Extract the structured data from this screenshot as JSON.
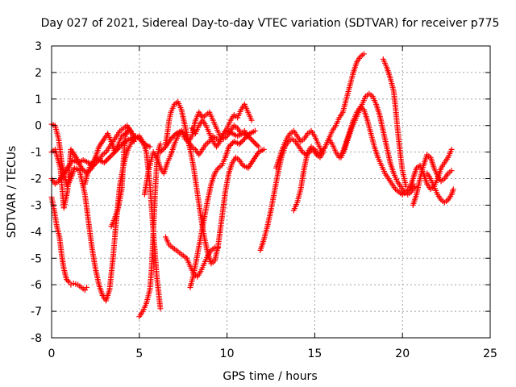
{
  "chart_data": {
    "type": "scatter",
    "title": "Day 027 of 2021, Sidereal Day-to-day VTEC variation (SDTVAR) for receiver p775",
    "xlabel": "GPS time / hours",
    "ylabel": "SDTVAR / TECUs",
    "xlim": [
      0,
      25
    ],
    "ylim": [
      -8,
      3
    ],
    "xticks": [
      0,
      5,
      10,
      15,
      20,
      25
    ],
    "yticks": [
      -8,
      -7,
      -6,
      -5,
      -4,
      -3,
      -2,
      -1,
      0,
      1,
      2,
      3
    ],
    "grid": true,
    "marker": "plus",
    "color": "#ff0000",
    "series": [
      {
        "name": "track-1",
        "x": [
          0.0,
          0.2,
          0.4,
          0.7,
          1.0,
          1.2,
          1.5,
          1.8,
          2.1,
          2.4,
          2.7,
          3.0,
          3.3,
          3.6,
          3.9,
          4.2,
          4.5,
          4.8,
          5.0,
          5.3,
          5.6
        ],
        "y": [
          -2.0,
          -2.2,
          -2.1,
          -1.8,
          -1.5,
          -1.3,
          -1.4,
          -1.3,
          -1.4,
          -1.5,
          -1.3,
          -1.4,
          -1.2,
          -1.0,
          -0.8,
          -0.6,
          -0.5,
          -0.4,
          -0.5,
          -0.7,
          -0.8
        ]
      },
      {
        "name": "track-2",
        "x": [
          0.0,
          0.2,
          0.4,
          0.6,
          0.9,
          1.1,
          1.3,
          1.6,
          1.9,
          2.1,
          2.3,
          2.5,
          2.7,
          2.9,
          3.1,
          3.3,
          3.5,
          3.7,
          3.9,
          4.1,
          4.3,
          4.5,
          4.7,
          5.0,
          5.2,
          5.4,
          5.6,
          5.8,
          6.0,
          6.2
        ],
        "y": [
          0.05,
          0.0,
          -0.5,
          -1.5,
          -2.3,
          -2.0,
          -1.6,
          -1.7,
          -2.6,
          -3.6,
          -4.6,
          -5.4,
          -6.0,
          -6.4,
          -6.6,
          -6.2,
          -5.0,
          -3.5,
          -2.2,
          -1.5,
          -1.0,
          -0.7,
          -0.5,
          -0.4,
          -0.6,
          -1.0,
          -2.2,
          -4.0,
          -5.7,
          -6.9
        ]
      },
      {
        "name": "track-3",
        "x": [
          0.0,
          0.15,
          0.3,
          0.45,
          0.6,
          0.7,
          0.85,
          1.0,
          1.1,
          1.25,
          1.5,
          1.7,
          1.9,
          2.0
        ],
        "y": [
          -2.7,
          -3.2,
          -3.8,
          -4.2,
          -5.0,
          -5.4,
          -5.8,
          -5.9,
          -6.0,
          -5.95,
          -6.0,
          -6.1,
          -6.2,
          -6.1
        ]
      },
      {
        "name": "track-4",
        "x": [
          0.0,
          0.2,
          0.5,
          0.7,
          0.9,
          1.1,
          1.4,
          1.7,
          2.0,
          2.3,
          2.5,
          2.7,
          3.0,
          3.2,
          3.4,
          3.6,
          3.8,
          4.0,
          4.2,
          4.4,
          4.6,
          4.8,
          5.0
        ],
        "y": [
          -1.0,
          -0.9,
          -1.6,
          -3.1,
          -2.5,
          -0.9,
          -1.2,
          -1.6,
          -1.8,
          -1.6,
          -1.2,
          -0.8,
          -0.5,
          -0.3,
          -0.6,
          -1.0,
          -0.7,
          -0.4,
          -0.3,
          -0.2,
          -0.3,
          -0.5,
          -0.4
        ]
      },
      {
        "name": "track-5",
        "x": [
          1.9,
          2.05,
          2.2,
          2.35,
          2.5,
          2.7,
          2.9,
          3.1,
          3.3,
          3.5,
          3.7,
          3.9,
          4.1,
          4.3,
          4.5
        ],
        "y": [
          -2.2,
          -1.8,
          -1.5,
          -1.4,
          -1.2,
          -1.3,
          -1.1,
          -1.0,
          -0.8,
          -0.6,
          -0.4,
          -0.2,
          -0.1,
          0.0,
          -0.2
        ]
      },
      {
        "name": "track-6",
        "x": [
          3.4,
          3.6,
          3.8,
          4.0,
          4.1,
          4.2,
          4.4,
          4.6,
          4.7
        ],
        "y": [
          -3.8,
          -3.5,
          -3.1,
          -2.4,
          -1.3,
          -0.4,
          -0.1,
          -0.3,
          -0.6
        ]
      },
      {
        "name": "track-7",
        "x": [
          5.0,
          5.2,
          5.4,
          5.6,
          5.7,
          5.8,
          5.9,
          6.0,
          6.1,
          6.2
        ],
        "y": [
          -7.2,
          -7.0,
          -6.7,
          -6.2,
          -5.4,
          -4.0,
          -2.6,
          -1.4,
          -0.9,
          -0.7
        ]
      },
      {
        "name": "track-8",
        "x": [
          5.3,
          5.4,
          5.5,
          5.6,
          5.8,
          6.0,
          6.2,
          6.4,
          6.6,
          6.8,
          7.0,
          7.2,
          7.4,
          7.6,
          7.8,
          8.0,
          8.2,
          8.4,
          8.6,
          8.8,
          9.0,
          9.2,
          9.4,
          9.6,
          9.8,
          10.0,
          10.3,
          10.6,
          10.9,
          11.2,
          11.5,
          11.8
        ],
        "y": [
          -2.6,
          -2.2,
          -1.8,
          -1.5,
          -1.0,
          -1.2,
          -1.6,
          -1.8,
          -1.4,
          -1.1,
          -0.7,
          -0.4,
          -0.2,
          -0.5,
          -0.6,
          -0.8,
          -0.9,
          -1.1,
          -0.9,
          -0.7,
          -0.6,
          -0.4,
          -0.5,
          -0.6,
          -0.3,
          -0.2,
          -0.3,
          -0.4,
          -0.3,
          -0.4,
          -0.6,
          -0.8
        ]
      },
      {
        "name": "track-9",
        "x": [
          6.5,
          6.6,
          6.7,
          6.8,
          7.0,
          7.2,
          7.4,
          7.6,
          7.8,
          8.0,
          8.2,
          8.4,
          8.6,
          8.8,
          9.0,
          9.2,
          9.4,
          9.6,
          9.8,
          10.0,
          10.2,
          10.4,
          10.6,
          10.8,
          11.0,
          11.2
        ],
        "y": [
          -0.7,
          -0.3,
          0.2,
          0.5,
          0.8,
          0.9,
          0.6,
          0.0,
          -0.6,
          -0.4,
          0.2,
          0.5,
          0.3,
          0.4,
          0.5,
          0.2,
          -0.1,
          -0.4,
          -0.5,
          -0.4,
          -0.2,
          0.0,
          -0.1,
          -0.3,
          -0.2,
          -0.4
        ]
      },
      {
        "name": "track-10",
        "x": [
          6.5,
          6.7,
          6.9,
          7.1,
          7.3,
          7.5,
          7.7,
          7.9,
          8.1,
          8.3,
          8.5,
          8.7,
          8.9,
          9.1,
          9.3,
          9.5
        ],
        "y": [
          -4.2,
          -4.5,
          -4.6,
          -4.7,
          -4.8,
          -4.9,
          -5.0,
          -5.3,
          -5.6,
          -5.7,
          -5.5,
          -5.2,
          -4.9,
          -4.7,
          -4.6,
          -4.6
        ]
      },
      {
        "name": "track-11",
        "x": [
          6.2,
          6.5,
          6.8,
          7.1,
          7.4,
          7.7,
          7.9,
          8.1,
          8.3,
          8.5,
          8.7,
          8.9,
          9.1,
          9.3,
          9.5,
          9.7,
          9.9,
          10.1,
          10.3,
          10.5,
          10.7,
          10.9,
          11.2,
          11.5,
          11.8,
          12.1
        ],
        "y": [
          -1.0,
          -0.8,
          -0.5,
          -0.3,
          -0.2,
          -0.4,
          -0.9,
          -1.6,
          -2.5,
          -3.4,
          -4.2,
          -4.8,
          -5.2,
          -5.1,
          -4.5,
          -3.5,
          -2.5,
          -1.8,
          -1.4,
          -1.2,
          -1.3,
          -1.5,
          -1.6,
          -1.3,
          -1.0,
          -0.9
        ]
      },
      {
        "name": "track-12",
        "x": [
          7.9,
          8.1,
          8.3,
          8.5,
          8.7,
          8.9,
          9.1,
          9.3,
          9.5,
          9.7,
          9.9,
          10.1,
          10.4,
          10.7,
          11.0,
          11.3,
          11.6
        ],
        "y": [
          -6.1,
          -5.6,
          -4.9,
          -4.2,
          -3.5,
          -2.8,
          -2.2,
          -1.8,
          -1.6,
          -1.5,
          -1.2,
          -0.8,
          -0.6,
          -0.7,
          -0.5,
          -0.3,
          -0.2
        ]
      },
      {
        "name": "track-13",
        "x": [
          8.0,
          8.2,
          8.4,
          8.6,
          8.8,
          9.0,
          9.2,
          9.4,
          9.6,
          9.8,
          10.0,
          10.2,
          10.4,
          10.6,
          10.8,
          11.0,
          11.2,
          11.4
        ],
        "y": [
          -0.1,
          -0.3,
          0.0,
          0.2,
          0.0,
          -0.3,
          -0.6,
          -0.8,
          -0.6,
          -0.3,
          -0.1,
          0.2,
          0.4,
          0.3,
          0.6,
          0.8,
          0.5,
          0.2
        ]
      },
      {
        "name": "track-14",
        "x": [
          11.9,
          12.1,
          12.3,
          12.5,
          12.7,
          12.9,
          13.1,
          13.3,
          13.5,
          13.7,
          13.9,
          14.1,
          14.3,
          14.5,
          14.7,
          14.9,
          15.1,
          15.3,
          15.5
        ],
        "y": [
          -4.7,
          -4.3,
          -3.8,
          -3.2,
          -2.5,
          -1.8,
          -1.2,
          -0.8,
          -0.6,
          -0.5,
          -0.6,
          -0.8,
          -1.0,
          -1.1,
          -1.0,
          -0.9,
          -1.1,
          -1.2,
          -1.0
        ]
      },
      {
        "name": "track-15",
        "x": [
          12.8,
          13.0,
          13.2,
          13.4,
          13.6,
          13.8,
          14.0,
          14.2,
          14.4,
          14.6,
          14.8,
          15.0,
          15.2,
          15.4,
          15.6,
          15.8,
          16.0,
          16.2,
          16.4,
          16.6,
          16.8,
          17.0,
          17.2,
          17.4,
          17.6,
          17.8
        ],
        "y": [
          -1.6,
          -1.2,
          -0.8,
          -0.5,
          -0.3,
          -0.2,
          -0.4,
          -0.6,
          -0.5,
          -0.3,
          -0.2,
          -0.4,
          -0.7,
          -1.0,
          -0.8,
          -0.5,
          -0.2,
          0.0,
          0.3,
          0.5,
          1.0,
          1.5,
          2.0,
          2.4,
          2.6,
          2.7
        ]
      },
      {
        "name": "track-16",
        "x": [
          13.8,
          14.0,
          14.2,
          14.4,
          14.6,
          14.8,
          15.0,
          15.2,
          15.4,
          15.6,
          15.8,
          16.0,
          16.2,
          16.4,
          16.6,
          16.8,
          17.0,
          17.2,
          17.4,
          17.6,
          17.8,
          18.0,
          18.2,
          18.4,
          18.6,
          18.8,
          19.0,
          19.2,
          19.4,
          19.6,
          19.8,
          20.0,
          20.2,
          20.4,
          20.6
        ],
        "y": [
          -3.2,
          -2.9,
          -2.4,
          -1.6,
          -1.0,
          -0.8,
          -0.9,
          -1.1,
          -1.0,
          -0.8,
          -0.5,
          -0.7,
          -1.0,
          -1.2,
          -1.0,
          -0.6,
          -0.2,
          0.2,
          0.5,
          0.7,
          0.6,
          0.2,
          -0.3,
          -0.8,
          -1.2,
          -1.5,
          -1.8,
          -2.0,
          -2.2,
          -2.4,
          -2.5,
          -2.6,
          -2.5,
          -2.4,
          -2.2
        ]
      },
      {
        "name": "track-17",
        "x": [
          16.5,
          16.7,
          16.9,
          17.1,
          17.3,
          17.5,
          17.7,
          17.9,
          18.1,
          18.3,
          18.5,
          18.7,
          18.9,
          19.1,
          19.3,
          19.5,
          19.7,
          19.9,
          20.1,
          20.3,
          20.5,
          20.7
        ],
        "y": [
          -1.2,
          -0.9,
          -0.5,
          -0.1,
          0.2,
          0.5,
          0.8,
          1.1,
          1.2,
          1.1,
          0.8,
          0.4,
          -0.2,
          -0.8,
          -1.4,
          -1.8,
          -2.1,
          -2.3,
          -2.5,
          -2.6,
          -2.5,
          -2.3
        ]
      },
      {
        "name": "track-18",
        "x": [
          18.9,
          19.1,
          19.3,
          19.5,
          19.6,
          19.7,
          19.8,
          19.9,
          20.0,
          20.1,
          20.2
        ],
        "y": [
          2.5,
          2.2,
          1.8,
          1.3,
          0.7,
          0.0,
          -0.6,
          -1.2,
          -1.7,
          -2.0,
          -2.3
        ]
      },
      {
        "name": "track-19",
        "x": [
          19.8,
          20.0,
          20.2,
          20.4,
          20.6,
          20.8,
          21.0,
          21.2,
          21.4,
          21.6,
          21.8,
          22.0,
          22.2,
          22.4,
          22.6,
          22.8
        ],
        "y": [
          -2.5,
          -2.6,
          -2.5,
          -2.4,
          -2.0,
          -1.6,
          -1.5,
          -1.8,
          -2.2,
          -2.4,
          -2.3,
          -2.0,
          -1.6,
          -1.4,
          -1.2,
          -0.9
        ]
      },
      {
        "name": "track-20",
        "x": [
          20.6,
          20.8,
          21.0,
          21.2,
          21.4,
          21.6,
          21.8,
          22.0,
          22.2,
          22.4,
          22.6,
          22.8
        ],
        "y": [
          -3.0,
          -2.6,
          -2.0,
          -1.5,
          -1.1,
          -1.2,
          -1.6,
          -1.9,
          -2.1,
          -2.0,
          -1.8,
          -1.7
        ]
      },
      {
        "name": "track-21",
        "x": [
          21.4,
          21.6,
          21.8,
          22.0,
          22.2,
          22.4,
          22.6,
          22.8,
          22.9
        ],
        "y": [
          -1.8,
          -2.0,
          -2.3,
          -2.6,
          -2.8,
          -2.9,
          -2.8,
          -2.6,
          -2.4
        ]
      }
    ]
  }
}
